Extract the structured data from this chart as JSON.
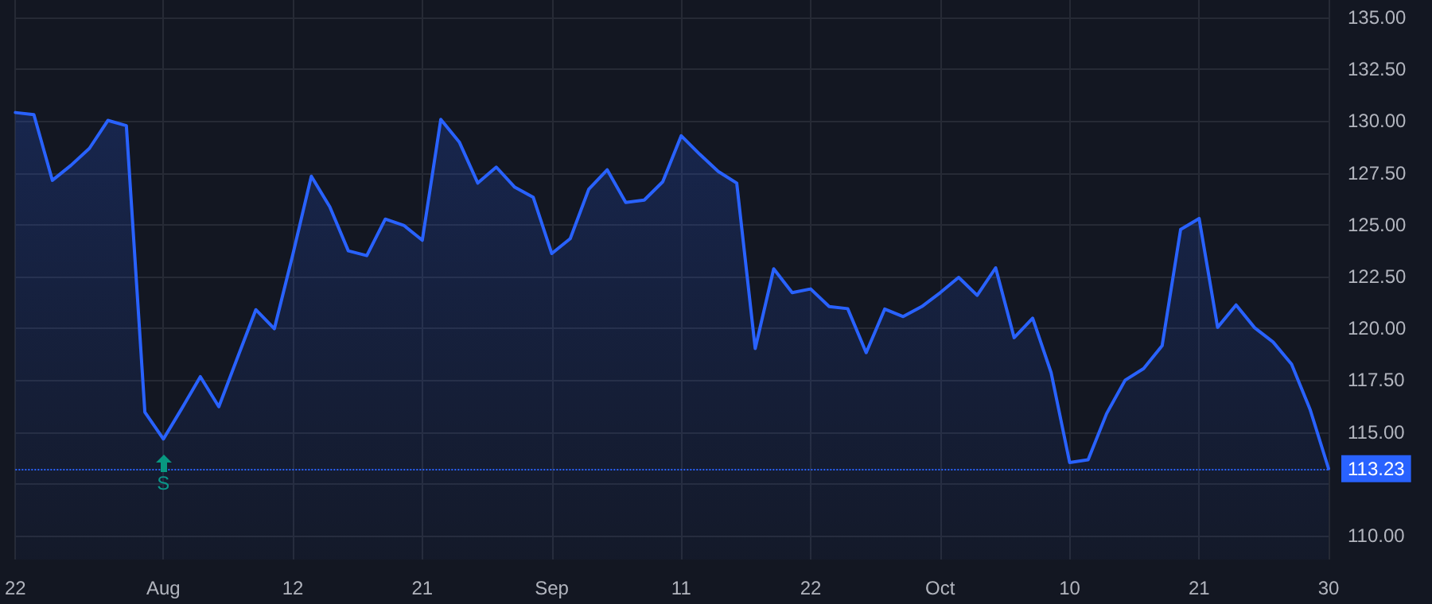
{
  "chart_data": {
    "type": "area",
    "categories": [
      "22",
      null,
      null,
      null,
      null,
      null,
      null,
      null,
      "Aug",
      null,
      null,
      null,
      null,
      null,
      null,
      "12",
      null,
      null,
      null,
      null,
      null,
      null,
      "21",
      null,
      null,
      null,
      null,
      null,
      null,
      "Sep",
      null,
      null,
      null,
      null,
      null,
      null,
      "11",
      null,
      null,
      null,
      null,
      null,
      null,
      "22",
      null,
      null,
      null,
      null,
      null,
      null,
      "Oct",
      null,
      null,
      null,
      null,
      null,
      null,
      "10",
      null,
      null,
      null,
      null,
      null,
      null,
      "21",
      null,
      null,
      null,
      null,
      null,
      null,
      "30"
    ],
    "series": [
      {
        "color": "#2962ff",
        "values": [
          130.41,
          130.31,
          127.14,
          127.86,
          128.68,
          130.03,
          129.78,
          115.96,
          114.66,
          116.14,
          117.67,
          116.22,
          118.57,
          120.9,
          119.98,
          123.56,
          127.34,
          125.86,
          123.74,
          123.51,
          125.27,
          124.97,
          124.25,
          130.08,
          128.99,
          127.01,
          127.78,
          126.81,
          126.32,
          123.61,
          124.33,
          126.71,
          127.65,
          126.07,
          126.19,
          127.07,
          129.29,
          128.4,
          127.57,
          127.01,
          119.03,
          122.87,
          121.72,
          121.9,
          121.05,
          120.95,
          118.83,
          120.93,
          120.57,
          121.05,
          121.72,
          122.46,
          121.59,
          122.92,
          119.55,
          120.49,
          117.86,
          113.53,
          113.66,
          115.89,
          117.5,
          118.06,
          119.16,
          124.77,
          125.3,
          120.05,
          121.13,
          120.03,
          119.34,
          118.27,
          116.09,
          113.23
        ]
      }
    ],
    "ylim": [
      108.85,
      135.84
    ],
    "yticks": [
      {
        "value": 110,
        "label": "110.00"
      },
      {
        "value": 112.5,
        "label": null
      },
      {
        "value": 115,
        "label": "115.00"
      },
      {
        "value": 117.5,
        "label": "117.50"
      },
      {
        "value": 120,
        "label": "120.00"
      },
      {
        "value": 122.5,
        "label": "122.50"
      },
      {
        "value": 125,
        "label": "125.00"
      },
      {
        "value": 127.5,
        "label": "127.50"
      },
      {
        "value": 130,
        "label": "130.00"
      },
      {
        "value": 132.5,
        "label": "132.50"
      },
      {
        "value": 135,
        "label": "135.00"
      }
    ],
    "ref_lines": [
      {
        "axis": "y",
        "value": 113.23,
        "label": "113.23",
        "color": "#2962ff",
        "line_style": "dotted"
      }
    ],
    "annotations": [
      {
        "text": "S",
        "x": "Aug",
        "y": 114.66
      }
    ],
    "grid": true,
    "marker": "none",
    "line_style": "solid"
  }
}
